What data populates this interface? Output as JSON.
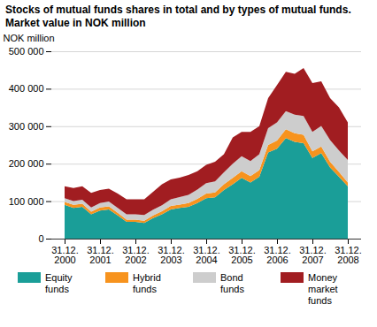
{
  "chart_data": {
    "type": "area",
    "stacked": true,
    "grid": true,
    "title": "Stocks of mutual funds shares in total and by types of  mutual funds. Market value in NOK million",
    "y_label": "NOK million",
    "categories": [
      "31.12.\n2000",
      null,
      null,
      null,
      "31.12.\n2001",
      null,
      null,
      null,
      "31.12.\n2002",
      null,
      null,
      null,
      "31.12.\n2003",
      null,
      null,
      null,
      "31.12.\n2004",
      null,
      null,
      null,
      "31.12.\n2005",
      null,
      null,
      null,
      "31.12.\n2006",
      null,
      null,
      null,
      "31.12.\n2007",
      null,
      null,
      null,
      "31.12.\n2008"
    ],
    "ylim": [
      0,
      500000
    ],
    "yticks": [
      0,
      {
        "value": 100000,
        "label": "100 000"
      },
      {
        "value": 200000,
        "label": "200 000"
      },
      {
        "value": 300000,
        "label": "300 000"
      },
      {
        "value": 400000,
        "label": "400 000"
      },
      {
        "value": 500000,
        "label": "500 000"
      }
    ],
    "legend": "bottom",
    "series": [
      {
        "name": "Equity funds",
        "color": "#1a9e98",
        "values": [
          90000,
          82000,
          85000,
          65000,
          75000,
          78000,
          62000,
          45000,
          45000,
          42000,
          55000,
          65000,
          78000,
          82000,
          85000,
          95000,
          108000,
          110000,
          130000,
          145000,
          162000,
          150000,
          165000,
          230000,
          240000,
          268000,
          258000,
          255000,
          215000,
          228000,
          190000,
          165000,
          140000
        ]
      },
      {
        "name": "Hybrid funds",
        "color": "#f7931e",
        "values": [
          8000,
          8000,
          8000,
          7000,
          8000,
          8000,
          7000,
          6000,
          6000,
          6000,
          7000,
          8000,
          9000,
          9000,
          10000,
          11000,
          12000,
          13000,
          15000,
          17000,
          18000,
          17000,
          18000,
          20000,
          22000,
          24000,
          23000,
          22000,
          18000,
          18000,
          15000,
          13000,
          10000
        ]
      },
      {
        "name": "Bond funds",
        "color": "#cdcdcd",
        "values": [
          10000,
          10000,
          11000,
          11000,
          12000,
          13000,
          13000,
          14000,
          14000,
          15000,
          15000,
          16000,
          18000,
          20000,
          22000,
          25000,
          28000,
          30000,
          32000,
          38000,
          40000,
          40000,
          42000,
          45000,
          48000,
          48000,
          50000,
          50000,
          52000,
          55000,
          58000,
          57000,
          60000
        ]
      },
      {
        "name": "Money market funds",
        "color": "#a11d21",
        "values": [
          32000,
          35000,
          36000,
          39000,
          35000,
          34000,
          38000,
          40000,
          40000,
          42000,
          48000,
          56000,
          53000,
          52000,
          53000,
          49000,
          49000,
          52000,
          48000,
          70000,
          65000,
          78000,
          75000,
          80000,
          100000,
          105000,
          109000,
          128000,
          130000,
          119000,
          112000,
          115000,
          100000
        ]
      }
    ]
  }
}
